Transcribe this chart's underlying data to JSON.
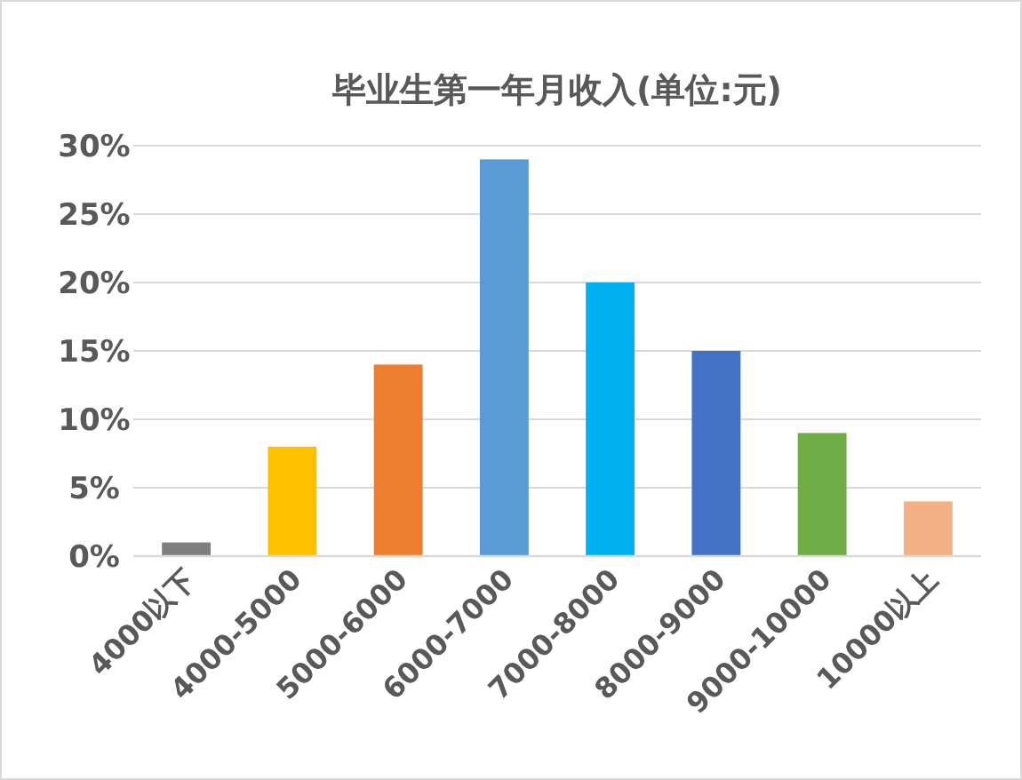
{
  "chart_data": {
    "type": "bar",
    "title": "毕业生第一年月收入(单位:元)",
    "categories": [
      "4000以下",
      "4000-5000",
      "5000-6000",
      "6000-7000",
      "7000-8000",
      "8000-9000",
      "9000-10000",
      "10000以上"
    ],
    "values": [
      1,
      8,
      14,
      29,
      20,
      15,
      9,
      4
    ],
    "colors": [
      "#7f7f7f",
      "#ffc000",
      "#ed7d31",
      "#5b9bd5",
      "#00b0f0",
      "#4472c4",
      "#70ad47",
      "#f4b183"
    ],
    "ylim": [
      0,
      30
    ],
    "yticks": [
      {
        "value": 0,
        "label": "0%"
      },
      {
        "value": 5,
        "label": "5%"
      },
      {
        "value": 10,
        "label": "10%"
      },
      {
        "value": 15,
        "label": "15%"
      },
      {
        "value": 20,
        "label": "20%"
      },
      {
        "value": 25,
        "label": "25%"
      },
      {
        "value": 30,
        "label": "30%"
      }
    ],
    "grid": "y"
  }
}
